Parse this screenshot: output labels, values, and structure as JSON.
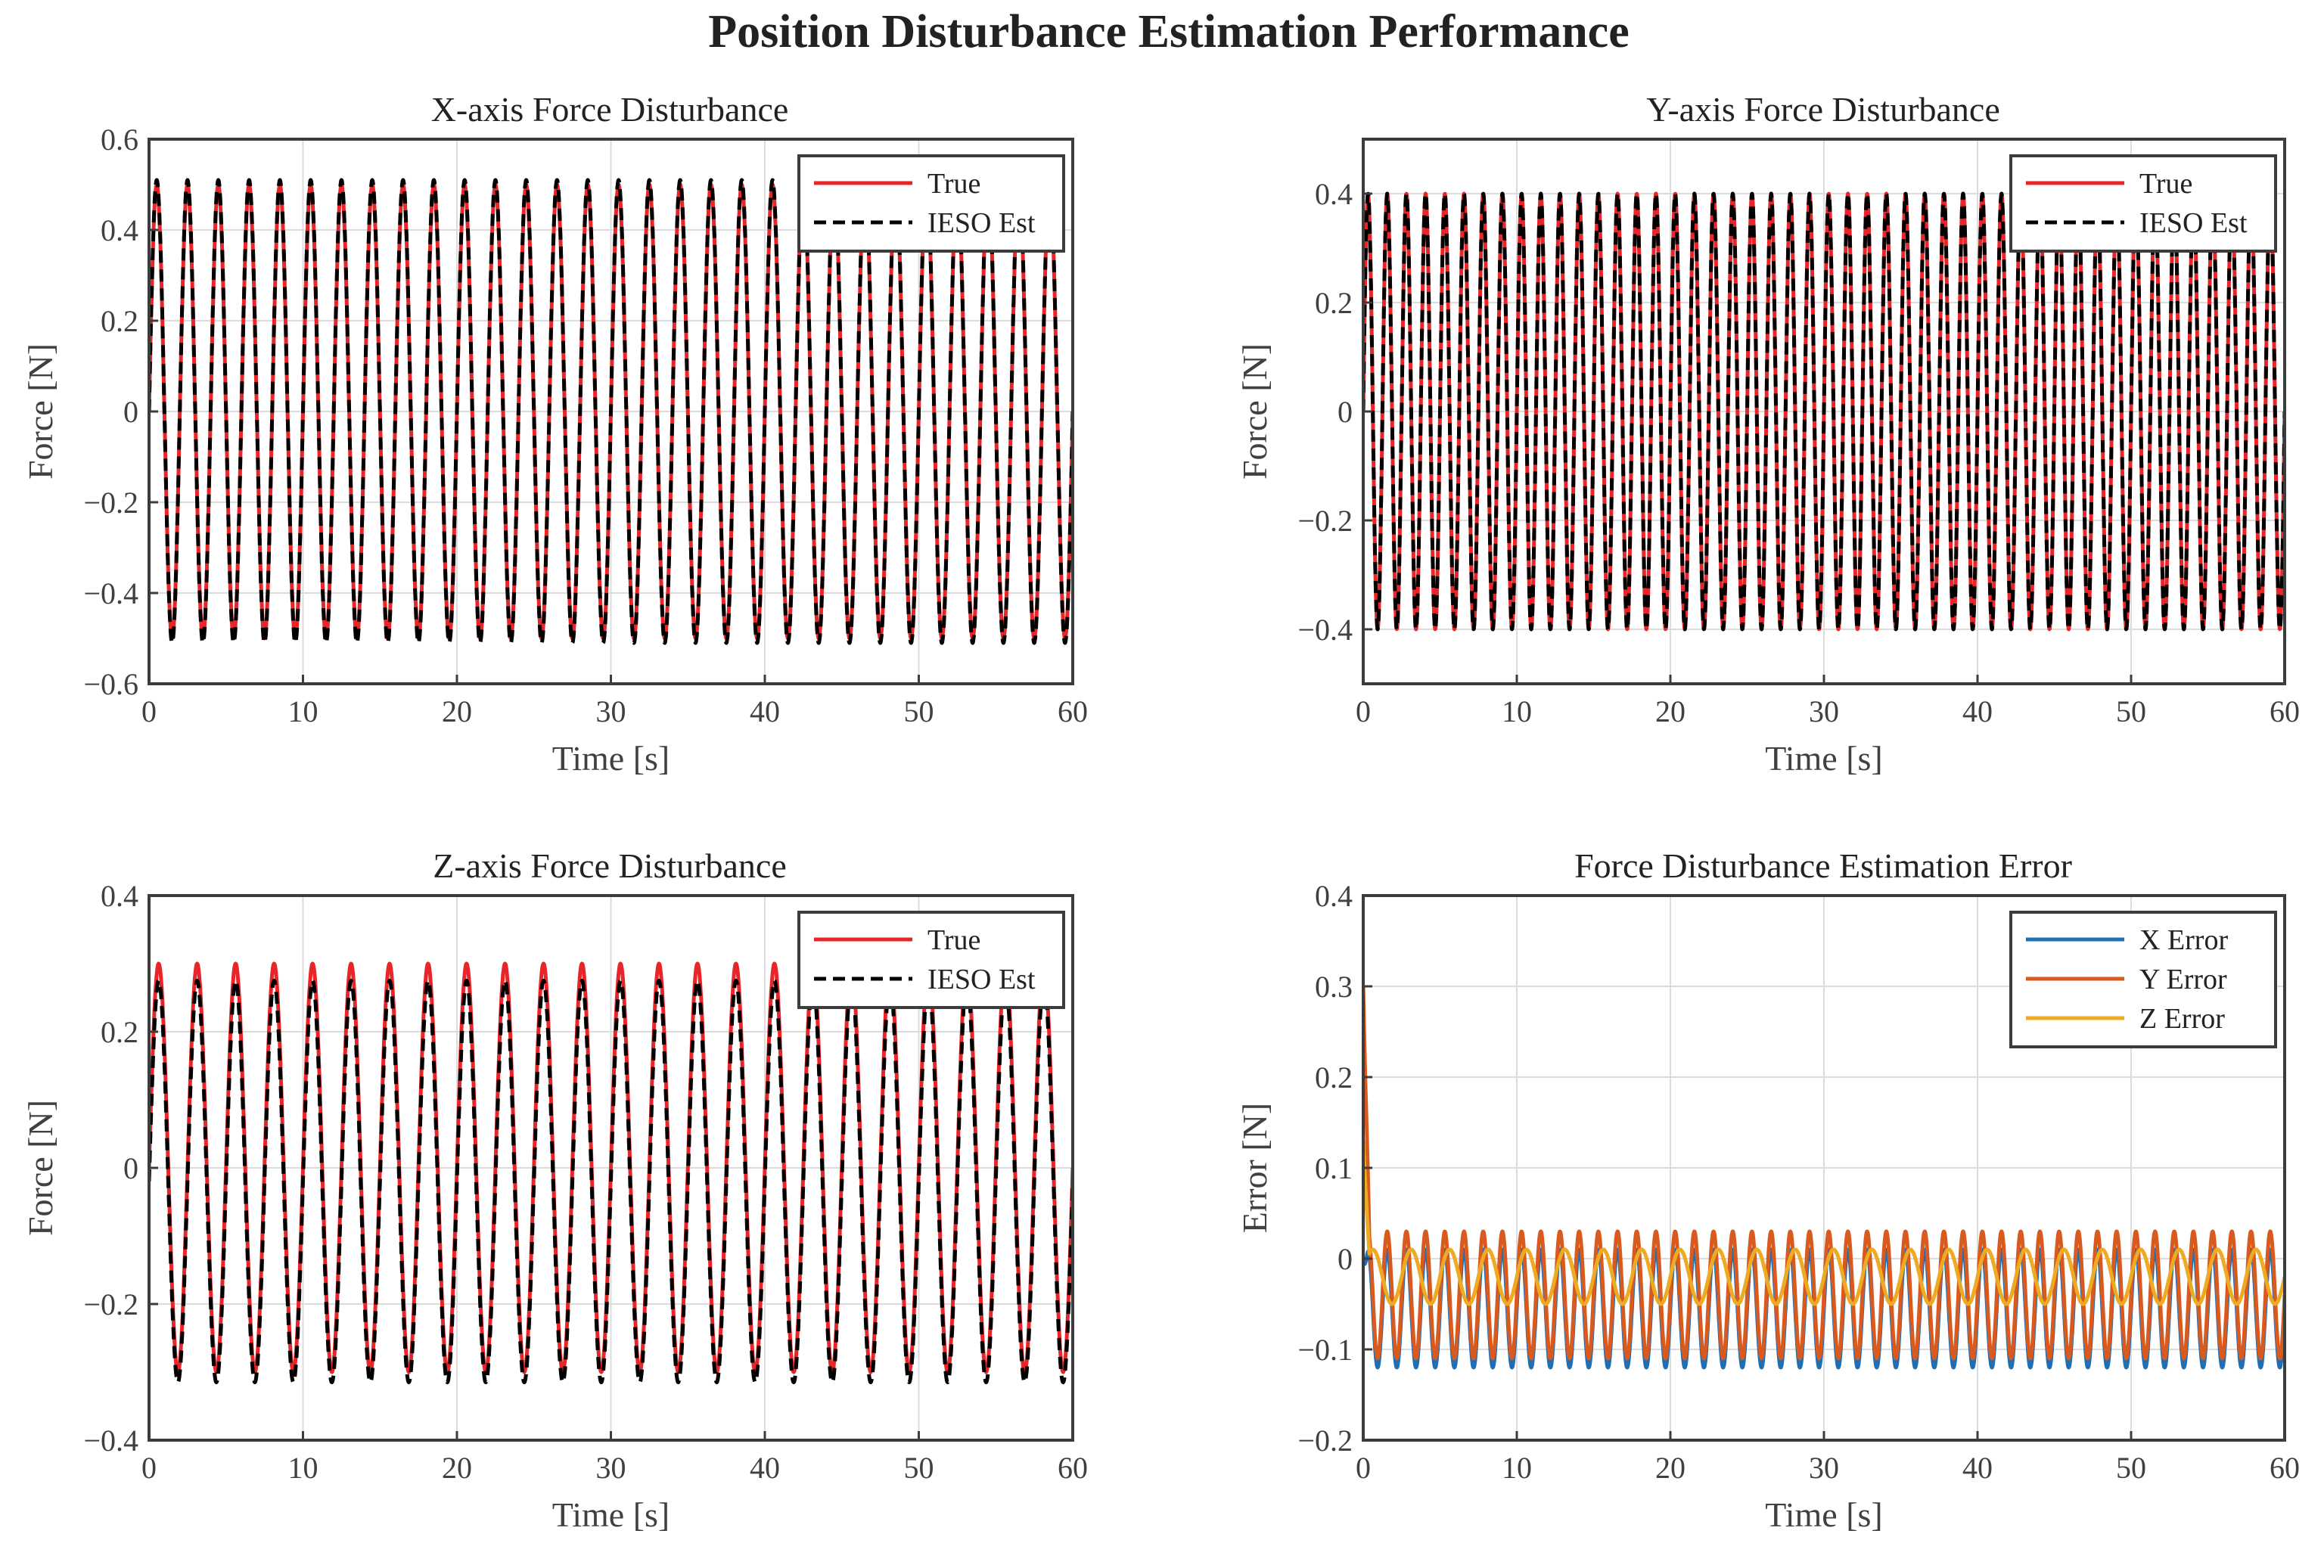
{
  "title": "Position Disturbance Estimation Performance",
  "colors": {
    "true": "#e8262a",
    "est": "#000000",
    "x_error": "#1f6fb5",
    "y_error": "#d95a1f",
    "z_error": "#edaa22"
  },
  "chart_data": [
    {
      "type": "line",
      "title": "X-axis Force Disturbance",
      "xlabel": "Time [s]",
      "ylabel": "Force [N]",
      "xlim": [
        0,
        60
      ],
      "ylim": [
        -0.6,
        0.6
      ],
      "xticks": [
        0,
        10,
        20,
        30,
        40,
        50,
        60
      ],
      "xtick_labels": [
        "0",
        "10",
        "20",
        "30",
        "40",
        "50",
        "60"
      ],
      "yticks": [
        -0.6,
        -0.4,
        -0.2,
        0,
        0.2,
        0.4,
        0.6
      ],
      "ytick_labels": [
        "−0.6",
        "−0.4",
        "−0.2",
        "0",
        "0.2",
        "0.4",
        "0.6"
      ],
      "legend_position": "top-right",
      "series": [
        {
          "name": "True",
          "kind": "sine",
          "amplitude": 0.5,
          "offset": 0,
          "frequency_hz": 0.5,
          "color_key": "true",
          "dashed": false
        },
        {
          "name": "IESO Est",
          "kind": "sine",
          "amplitude": 0.51,
          "offset": 0,
          "frequency_hz": 0.5,
          "color_key": "est",
          "dashed": true
        }
      ]
    },
    {
      "type": "line",
      "title": "Y-axis Force Disturbance",
      "xlabel": "Time [s]",
      "ylabel": "Force [N]",
      "xlim": [
        0,
        60
      ],
      "ylim": [
        -0.5,
        0.5
      ],
      "xticks": [
        0,
        10,
        20,
        30,
        40,
        50,
        60
      ],
      "xtick_labels": [
        "0",
        "10",
        "20",
        "30",
        "40",
        "50",
        "60"
      ],
      "yticks": [
        -0.4,
        -0.2,
        0,
        0.2,
        0.4
      ],
      "ytick_labels": [
        "−0.4",
        "−0.2",
        "0",
        "0.2",
        "0.4"
      ],
      "legend_position": "top-right",
      "series": [
        {
          "name": "True",
          "kind": "sine",
          "amplitude": 0.4,
          "offset": 0,
          "frequency_hz": 0.8,
          "color_key": "true",
          "dashed": false
        },
        {
          "name": "IESO Est",
          "kind": "sine",
          "amplitude": 0.4,
          "offset": 0,
          "frequency_hz": 0.8,
          "color_key": "est",
          "dashed": true
        }
      ]
    },
    {
      "type": "line",
      "title": "Z-axis Force Disturbance",
      "xlabel": "Time [s]",
      "ylabel": "Force [N]",
      "xlim": [
        0,
        60
      ],
      "ylim": [
        -0.4,
        0.4
      ],
      "xticks": [
        0,
        10,
        20,
        30,
        40,
        50,
        60
      ],
      "xtick_labels": [
        "0",
        "10",
        "20",
        "30",
        "40",
        "50",
        "60"
      ],
      "yticks": [
        -0.4,
        -0.2,
        0,
        0.2,
        0.4
      ],
      "ytick_labels": [
        "−0.4",
        "−0.2",
        "0",
        "0.2",
        "0.4"
      ],
      "legend_position": "top-right",
      "series": [
        {
          "name": "True",
          "kind": "sine",
          "amplitude": 0.3,
          "offset": 0,
          "frequency_hz": 0.4,
          "color_key": "true",
          "dashed": false
        },
        {
          "name": "IESO Est",
          "kind": "sine",
          "amplitude": 0.295,
          "offset": -0.02,
          "frequency_hz": 0.4,
          "color_key": "est",
          "dashed": true
        }
      ]
    },
    {
      "type": "line",
      "title": "Force Disturbance Estimation Error",
      "xlabel": "Time [s]",
      "ylabel": "Error [N]",
      "xlim": [
        0,
        60
      ],
      "ylim": [
        -0.2,
        0.4
      ],
      "xticks": [
        0,
        10,
        20,
        30,
        40,
        50,
        60
      ],
      "xtick_labels": [
        "0",
        "10",
        "20",
        "30",
        "40",
        "50",
        "60"
      ],
      "yticks": [
        -0.2,
        -0.1,
        0,
        0.1,
        0.2,
        0.3,
        0.4
      ],
      "ytick_labels": [
        "−0.2",
        "−0.1",
        "0",
        "0.1",
        "0.2",
        "0.3",
        "0.4"
      ],
      "legend_position": "top-right",
      "series": [
        {
          "name": "X Error",
          "kind": "sine",
          "amplitude": 0.065,
          "offset": -0.055,
          "frequency_hz": 0.8,
          "color_key": "x_error",
          "dashed": false,
          "initial_peak": 0.0
        },
        {
          "name": "Y Error",
          "kind": "sine",
          "amplitude": 0.07,
          "offset": -0.04,
          "frequency_hz": 0.8,
          "color_key": "y_error",
          "dashed": false,
          "initial_peak": 0.3
        },
        {
          "name": "Z Error",
          "kind": "sine",
          "amplitude": 0.03,
          "offset": -0.02,
          "frequency_hz": 0.4,
          "color_key": "z_error",
          "dashed": false,
          "initial_peak": 0.13
        }
      ]
    }
  ]
}
